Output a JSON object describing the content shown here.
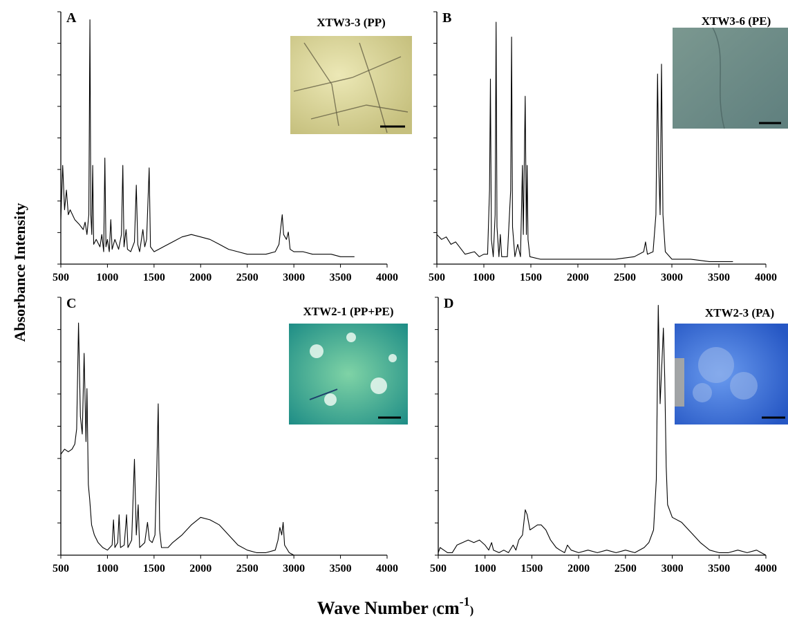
{
  "chart_data": [
    {
      "type": "line",
      "panel": "A",
      "inset_label": "XTW3-3 (PP)",
      "inset_image": "yellowish micrograph with dark crack network and scale bar",
      "xlim": [
        500,
        4000
      ],
      "x_ticks": [
        "500",
        "1000",
        "1500",
        "2000",
        "2500",
        "3000",
        "3500",
        "4000"
      ],
      "y_ticks": 8,
      "series": [
        {
          "points": [
            [
              500,
              0.18
            ],
            [
              520,
              0.4
            ],
            [
              540,
              0.22
            ],
            [
              560,
              0.3
            ],
            [
              580,
              0.2
            ],
            [
              600,
              0.22
            ],
            [
              650,
              0.18
            ],
            [
              700,
              0.16
            ],
            [
              740,
              0.14
            ],
            [
              760,
              0.17
            ],
            [
              780,
              0.12
            ],
            [
              800,
              0.2
            ],
            [
              812,
              0.99
            ],
            [
              822,
              0.2
            ],
            [
              832,
              0.12
            ],
            [
              842,
              0.4
            ],
            [
              852,
              0.08
            ],
            [
              880,
              0.1
            ],
            [
              920,
              0.07
            ],
            [
              940,
              0.12
            ],
            [
              960,
              0.05
            ],
            [
              972,
              0.43
            ],
            [
              984,
              0.07
            ],
            [
              1000,
              0.1
            ],
            [
              1020,
              0.05
            ],
            [
              1036,
              0.18
            ],
            [
              1050,
              0.06
            ],
            [
              1080,
              0.1
            ],
            [
              1120,
              0.06
            ],
            [
              1150,
              0.12
            ],
            [
              1165,
              0.4
            ],
            [
              1178,
              0.07
            ],
            [
              1200,
              0.14
            ],
            [
              1215,
              0.06
            ],
            [
              1250,
              0.05
            ],
            [
              1290,
              0.09
            ],
            [
              1310,
              0.32
            ],
            [
              1325,
              0.08
            ],
            [
              1345,
              0.05
            ],
            [
              1380,
              0.14
            ],
            [
              1400,
              0.07
            ],
            [
              1420,
              0.1
            ],
            [
              1448,
              0.39
            ],
            [
              1462,
              0.07
            ],
            [
              1500,
              0.05
            ],
            [
              1550,
              0.06
            ],
            [
              1600,
              0.07
            ],
            [
              1700,
              0.09
            ],
            [
              1800,
              0.11
            ],
            [
              1900,
              0.12
            ],
            [
              2000,
              0.11
            ],
            [
              2100,
              0.1
            ],
            [
              2200,
              0.08
            ],
            [
              2300,
              0.06
            ],
            [
              2400,
              0.05
            ],
            [
              2500,
              0.04
            ],
            [
              2600,
              0.04
            ],
            [
              2700,
              0.04
            ],
            [
              2800,
              0.05
            ],
            [
              2840,
              0.08
            ],
            [
              2860,
              0.15
            ],
            [
              2875,
              0.2
            ],
            [
              2890,
              0.12
            ],
            [
              2920,
              0.1
            ],
            [
              2940,
              0.13
            ],
            [
              2960,
              0.06
            ],
            [
              3000,
              0.05
            ],
            [
              3100,
              0.05
            ],
            [
              3200,
              0.04
            ],
            [
              3300,
              0.04
            ],
            [
              3400,
              0.04
            ],
            [
              3500,
              0.03
            ],
            [
              3600,
              0.03
            ],
            [
              3650,
              0.03
            ]
          ]
        }
      ]
    },
    {
      "type": "line",
      "panel": "B",
      "inset_label": "XTW3-6 (PE)",
      "inset_image": "grey-green micrograph with faint crack and scale bar",
      "xlim": [
        500,
        4000
      ],
      "x_ticks": [
        "500",
        "1000",
        "1500",
        "2000",
        "2500",
        "3000",
        "3500",
        "4000"
      ],
      "y_ticks": 8,
      "series": [
        {
          "points": [
            [
              500,
              0.12
            ],
            [
              550,
              0.1
            ],
            [
              600,
              0.11
            ],
            [
              650,
              0.08
            ],
            [
              700,
              0.09
            ],
            [
              800,
              0.04
            ],
            [
              900,
              0.05
            ],
            [
              950,
              0.03
            ],
            [
              1000,
              0.04
            ],
            [
              1040,
              0.04
            ],
            [
              1060,
              0.3
            ],
            [
              1070,
              0.75
            ],
            [
              1080,
              0.1
            ],
            [
              1100,
              0.03
            ],
            [
              1120,
              0.2
            ],
            [
              1130,
              0.98
            ],
            [
              1140,
              0.15
            ],
            [
              1160,
              0.03
            ],
            [
              1175,
              0.12
            ],
            [
              1190,
              0.03
            ],
            [
              1250,
              0.03
            ],
            [
              1285,
              0.3
            ],
            [
              1295,
              0.92
            ],
            [
              1305,
              0.15
            ],
            [
              1330,
              0.03
            ],
            [
              1360,
              0.08
            ],
            [
              1390,
              0.03
            ],
            [
              1410,
              0.4
            ],
            [
              1420,
              0.12
            ],
            [
              1440,
              0.68
            ],
            [
              1452,
              0.12
            ],
            [
              1460,
              0.4
            ],
            [
              1470,
              0.1
            ],
            [
              1490,
              0.03
            ],
            [
              1600,
              0.02
            ],
            [
              1800,
              0.02
            ],
            [
              2000,
              0.02
            ],
            [
              2200,
              0.02
            ],
            [
              2400,
              0.02
            ],
            [
              2600,
              0.03
            ],
            [
              2700,
              0.05
            ],
            [
              2720,
              0.09
            ],
            [
              2740,
              0.04
            ],
            [
              2800,
              0.05
            ],
            [
              2830,
              0.2
            ],
            [
              2848,
              0.77
            ],
            [
              2860,
              0.4
            ],
            [
              2875,
              0.2
            ],
            [
              2890,
              0.81
            ],
            [
              2905,
              0.2
            ],
            [
              2930,
              0.05
            ],
            [
              3000,
              0.02
            ],
            [
              3200,
              0.02
            ],
            [
              3400,
              0.01
            ],
            [
              3600,
              0.01
            ],
            [
              3650,
              0.01
            ]
          ]
        }
      ]
    },
    {
      "type": "line",
      "panel": "C",
      "inset_label": "XTW2-1 (PP+PE)",
      "inset_image": "teal-green micrograph with bright crystals and scale bar",
      "xlim": [
        500,
        4000
      ],
      "x_ticks": [
        "500",
        "1000",
        "1500",
        "2000",
        "2500",
        "3000",
        "3500",
        "4000"
      ],
      "y_ticks": 8,
      "series": [
        {
          "points": [
            [
              500,
              0.4
            ],
            [
              540,
              0.42
            ],
            [
              580,
              0.41
            ],
            [
              620,
              0.42
            ],
            [
              650,
              0.44
            ],
            [
              670,
              0.5
            ],
            [
              690,
              0.92
            ],
            [
              710,
              0.55
            ],
            [
              730,
              0.48
            ],
            [
              750,
              0.8
            ],
            [
              770,
              0.45
            ],
            [
              780,
              0.66
            ],
            [
              795,
              0.28
            ],
            [
              810,
              0.22
            ],
            [
              830,
              0.12
            ],
            [
              860,
              0.08
            ],
            [
              900,
              0.05
            ],
            [
              950,
              0.03
            ],
            [
              1000,
              0.02
            ],
            [
              1050,
              0.04
            ],
            [
              1065,
              0.14
            ],
            [
              1080,
              0.03
            ],
            [
              1110,
              0.05
            ],
            [
              1125,
              0.16
            ],
            [
              1140,
              0.03
            ],
            [
              1180,
              0.04
            ],
            [
              1205,
              0.16
            ],
            [
              1220,
              0.03
            ],
            [
              1260,
              0.06
            ],
            [
              1290,
              0.38
            ],
            [
              1310,
              0.08
            ],
            [
              1330,
              0.2
            ],
            [
              1345,
              0.03
            ],
            [
              1400,
              0.05
            ],
            [
              1430,
              0.13
            ],
            [
              1450,
              0.06
            ],
            [
              1480,
              0.05
            ],
            [
              1510,
              0.08
            ],
            [
              1530,
              0.35
            ],
            [
              1545,
              0.6
            ],
            [
              1560,
              0.1
            ],
            [
              1580,
              0.03
            ],
            [
              1650,
              0.03
            ],
            [
              1700,
              0.05
            ],
            [
              1800,
              0.08
            ],
            [
              1900,
              0.12
            ],
            [
              2000,
              0.15
            ],
            [
              2100,
              0.14
            ],
            [
              2200,
              0.12
            ],
            [
              2300,
              0.08
            ],
            [
              2400,
              0.04
            ],
            [
              2500,
              0.02
            ],
            [
              2600,
              0.01
            ],
            [
              2700,
              0.01
            ],
            [
              2800,
              0.02
            ],
            [
              2830,
              0.06
            ],
            [
              2850,
              0.11
            ],
            [
              2870,
              0.08
            ],
            [
              2885,
              0.13
            ],
            [
              2900,
              0.04
            ],
            [
              2950,
              0.01
            ],
            [
              3000,
              0.0
            ],
            [
              3200,
              0.0
            ],
            [
              3400,
              0.0
            ],
            [
              3650,
              0.0
            ]
          ]
        }
      ]
    },
    {
      "type": "line",
      "panel": "D",
      "inset_label": "XTW2-3 (PA)",
      "inset_image": "blue micrograph with speckled fragment and scale bar",
      "xlim": [
        500,
        4000
      ],
      "x_ticks": [
        "500",
        "1000",
        "1500",
        "2000",
        "2500",
        "3000",
        "3500",
        "4000"
      ],
      "y_ticks": 8,
      "series": [
        {
          "points": [
            [
              500,
              0.01
            ],
            [
              520,
              0.03
            ],
            [
              560,
              0.02
            ],
            [
              600,
              0.01
            ],
            [
              650,
              0.01
            ],
            [
              700,
              0.04
            ],
            [
              760,
              0.05
            ],
            [
              820,
              0.06
            ],
            [
              880,
              0.05
            ],
            [
              940,
              0.06
            ],
            [
              1000,
              0.04
            ],
            [
              1040,
              0.02
            ],
            [
              1070,
              0.05
            ],
            [
              1090,
              0.02
            ],
            [
              1150,
              0.01
            ],
            [
              1200,
              0.02
            ],
            [
              1250,
              0.01
            ],
            [
              1300,
              0.04
            ],
            [
              1330,
              0.02
            ],
            [
              1360,
              0.06
            ],
            [
              1400,
              0.08
            ],
            [
              1430,
              0.18
            ],
            [
              1450,
              0.16
            ],
            [
              1480,
              0.1
            ],
            [
              1520,
              0.11
            ],
            [
              1560,
              0.12
            ],
            [
              1600,
              0.12
            ],
            [
              1650,
              0.1
            ],
            [
              1700,
              0.06
            ],
            [
              1760,
              0.03
            ],
            [
              1800,
              0.02
            ],
            [
              1850,
              0.01
            ],
            [
              1880,
              0.04
            ],
            [
              1920,
              0.02
            ],
            [
              2000,
              0.01
            ],
            [
              2100,
              0.02
            ],
            [
              2200,
              0.01
            ],
            [
              2300,
              0.02
            ],
            [
              2400,
              0.01
            ],
            [
              2500,
              0.02
            ],
            [
              2600,
              0.01
            ],
            [
              2700,
              0.03
            ],
            [
              2750,
              0.05
            ],
            [
              2800,
              0.1
            ],
            [
              2830,
              0.3
            ],
            [
              2850,
              0.99
            ],
            [
              2870,
              0.6
            ],
            [
              2890,
              0.77
            ],
            [
              2905,
              0.9
            ],
            [
              2920,
              0.7
            ],
            [
              2935,
              0.35
            ],
            [
              2950,
              0.2
            ],
            [
              3000,
              0.15
            ],
            [
              3100,
              0.13
            ],
            [
              3150,
              0.11
            ],
            [
              3200,
              0.09
            ],
            [
              3300,
              0.05
            ],
            [
              3400,
              0.02
            ],
            [
              3500,
              0.01
            ],
            [
              3600,
              0.01
            ],
            [
              3700,
              0.02
            ],
            [
              3800,
              0.01
            ],
            [
              3900,
              0.02
            ],
            [
              3950,
              0.01
            ],
            [
              4000,
              0.0
            ]
          ]
        }
      ]
    }
  ],
  "ylabel": "Absorbance Intensity",
  "xlabel_main": "Wave Number",
  "xlabel_unit_open": "(",
  "xlabel_unit": "cm",
  "xlabel_exp": "-1",
  "xlabel_unit_close": ")",
  "colors": {
    "line": "#000000",
    "inset_A": "#d6d293",
    "inset_B": "#6e8c86",
    "inset_C": "#3ea88c",
    "inset_D": "#3a6fd8"
  }
}
